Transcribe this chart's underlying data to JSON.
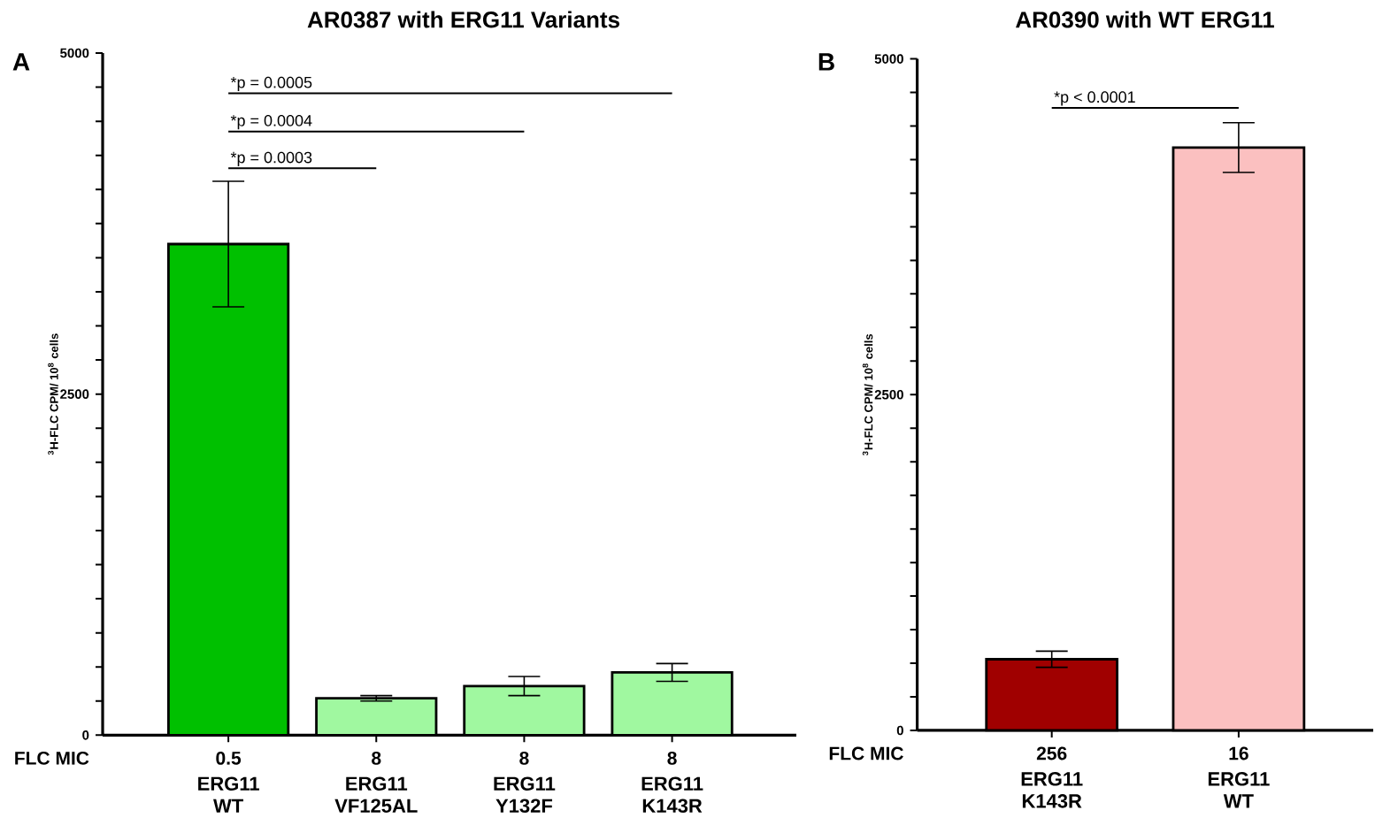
{
  "chart_data": [
    {
      "type": "bar",
      "title": "AR0387 with ERG11 Variants",
      "ylabel": "$^{3}$H-FLC CPM/ 10$^{8}$ cells",
      "categories": [
        "ERG11 WT",
        "ERG11 VF125AL",
        "ERG11 Y132F",
        "ERG11 K143R"
      ],
      "values": [
        3600,
        270,
        360,
        460
      ],
      "errors": [
        460,
        20,
        70,
        65
      ],
      "colors": [
        "#00c000",
        "#a0f8a0",
        "#a0f8a0",
        "#a0f8a0"
      ],
      "ylim": [
        0,
        5000
      ],
      "yticks": [
        0,
        2500,
        5000
      ],
      "annotations": [
        "A",
        "FLC MIC",
        "0.5",
        "8",
        "8",
        "8",
        "*p = 0.0003",
        "*p = 0.0004",
        "*p = 0.0005"
      ]
    },
    {
      "type": "bar",
      "title": "AR0390 with WT ERG11",
      "ylabel": "$^{3}$H-FLC CPM/ 10$^{8}$ cells",
      "categories": [
        "ERG11 K143R",
        "ERG11 WT"
      ],
      "values": [
        530,
        4340
      ],
      "errors": [
        60,
        185
      ],
      "colors": [
        "#a00000",
        "#fbc0c0"
      ],
      "ylim": [
        0,
        5000
      ],
      "yticks": [
        0,
        2500,
        5000
      ],
      "annotations": [
        "B",
        "FLC MIC",
        "256",
        "16",
        "*p < 0.0001"
      ]
    }
  ]
}
